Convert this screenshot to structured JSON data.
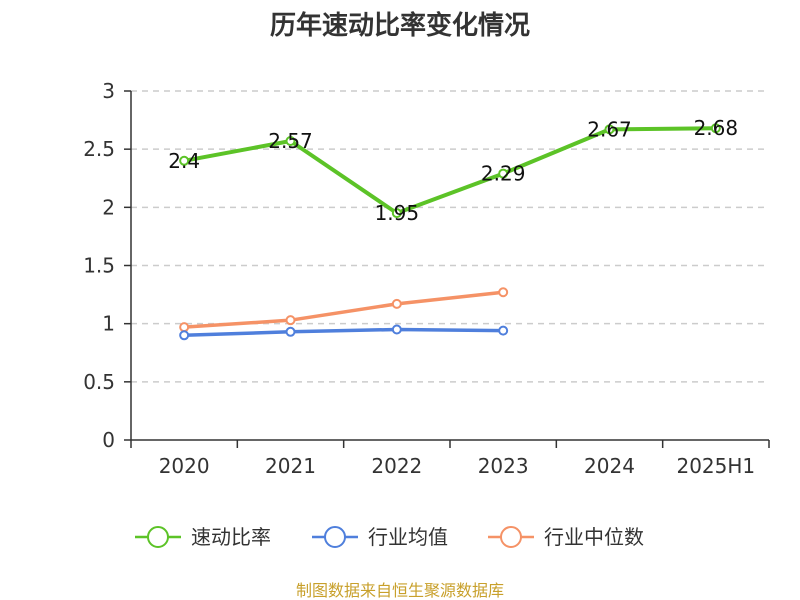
{
  "chart_data": {
    "type": "line",
    "title": "历年速动比率变化情况",
    "categories": [
      "2020",
      "2021",
      "2022",
      "2023",
      "2024",
      "2025H1"
    ],
    "ylim": [
      0,
      3
    ],
    "yticks": [
      "0",
      "0.5",
      "1",
      "1.5",
      "2",
      "2.5",
      "3"
    ],
    "grid": true,
    "legend_position": "bottom",
    "series": [
      {
        "name": "速动比率",
        "color": "#5cc327",
        "values": [
          2.4,
          2.57,
          1.95,
          2.29,
          2.67,
          2.68
        ],
        "labels": [
          "2.4",
          "2.57",
          "1.95",
          "2.29",
          "2.67",
          "2.68"
        ]
      },
      {
        "name": "行业均值",
        "color": "#4f7fdc",
        "values": [
          0.9,
          0.93,
          0.95,
          0.94,
          null,
          null
        ]
      },
      {
        "name": "行业中位数",
        "color": "#f59266",
        "values": [
          0.97,
          1.03,
          1.17,
          1.27,
          null,
          null
        ]
      }
    ],
    "source": "制图数据来自恒生聚源数据库",
    "source_color": "#c8a02b"
  }
}
